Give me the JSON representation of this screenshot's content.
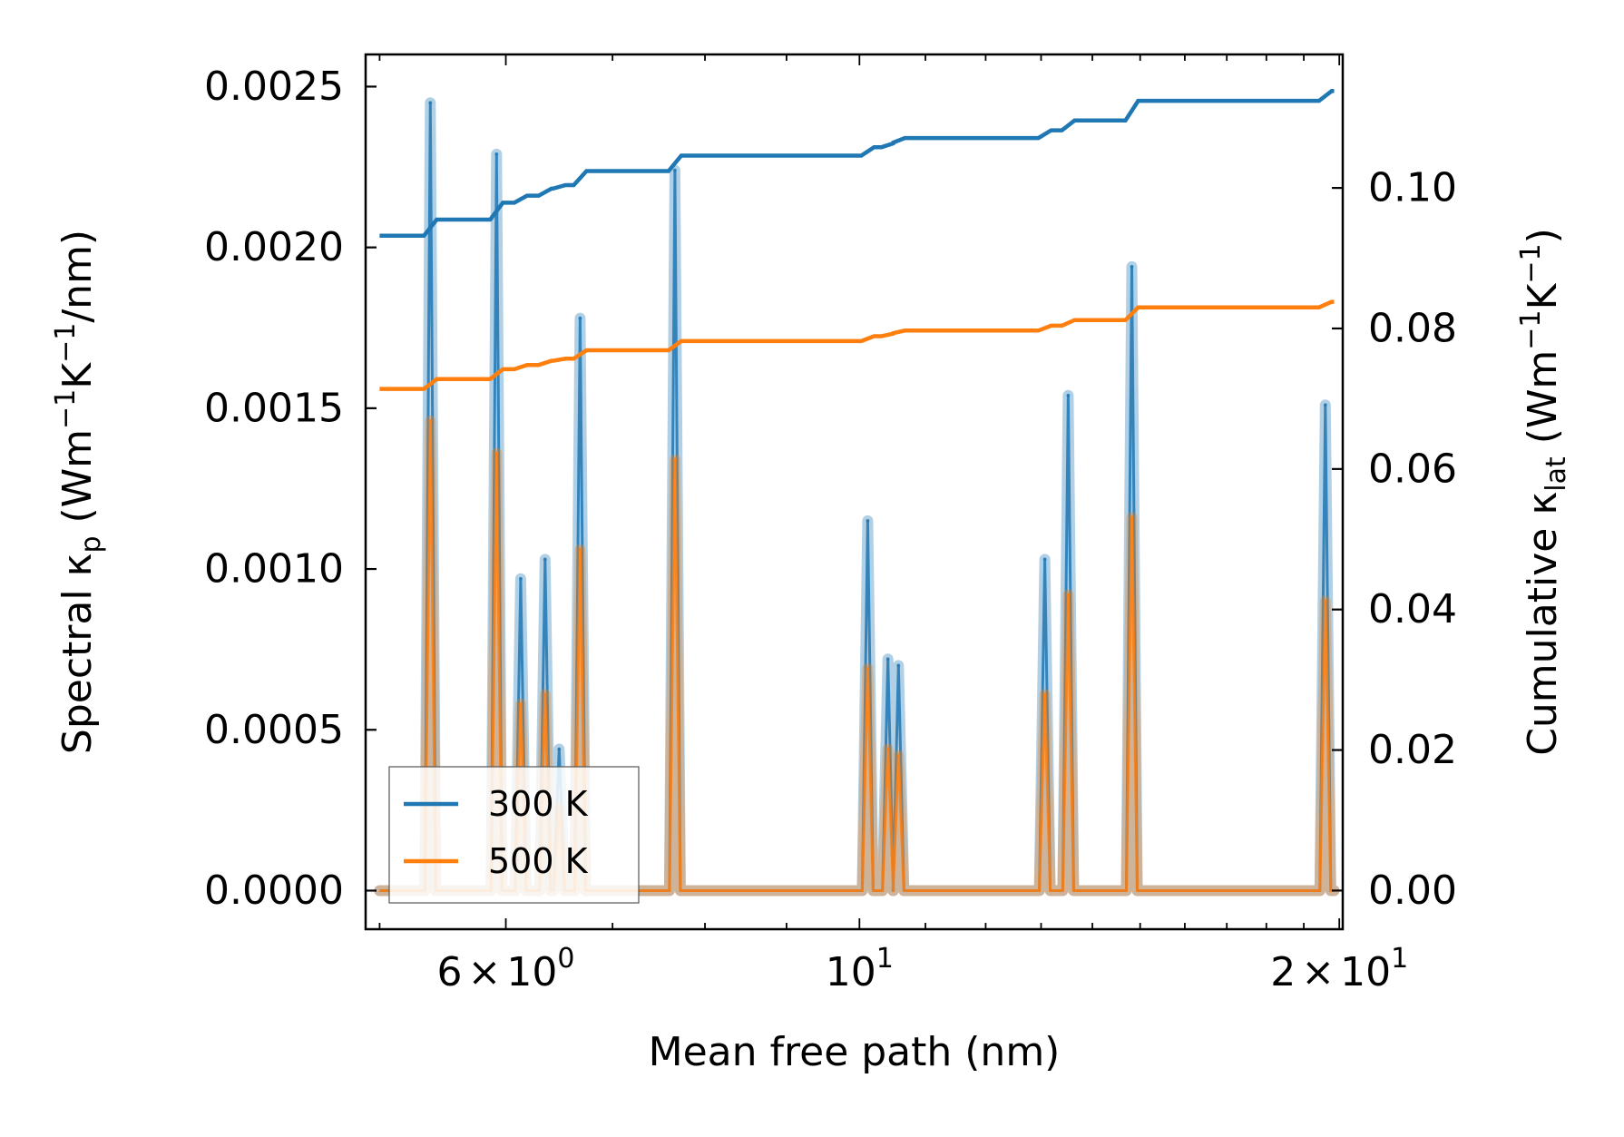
{
  "chart_data": {
    "type": "line",
    "title": "",
    "xlabel": "Mean free path (nm)",
    "xscale": "log",
    "xlim": [
      4.9,
      20.1
    ],
    "x_ticks": [
      {
        "value": 6,
        "base": "6",
        "times": "×",
        "exp_base": "10",
        "exp": "0"
      },
      {
        "value": 10,
        "base": "",
        "times": "",
        "exp_base": "10",
        "exp": "1"
      },
      {
        "value": 20,
        "base": "2",
        "times": "×",
        "exp_base": "10",
        "exp": "1"
      }
    ],
    "ylabel_left": {
      "prefix": "Spectral κ",
      "sub": "p",
      "middle1": " (Wm",
      "sup1": "−1",
      "middle2": "K",
      "sup2": "−1",
      "suffix": "/nm)"
    },
    "ylim_left": [
      -0.00012,
      0.0026
    ],
    "yticks_left": [
      "0.0000",
      "0.0005",
      "0.0010",
      "0.0015",
      "0.0020",
      "0.0025"
    ],
    "ylabel_right": {
      "prefix": "Cumulative κ",
      "sub": "lat",
      "middle1": " (Wm",
      "sup1": "−1",
      "middle2": "K",
      "sup2": "−1",
      "suffix": ")"
    },
    "ylim_right": [
      -0.0055,
      0.119
    ],
    "yticks_right": [
      "0.00",
      "0.02",
      "0.04",
      "0.06",
      "0.08",
      "0.10"
    ],
    "legend": {
      "position": "lower-left",
      "entries": [
        {
          "label": "300 K",
          "color": "#1f77b4"
        },
        {
          "label": "500 K",
          "color": "#ff7f0e"
        }
      ]
    },
    "x_start": 5.0,
    "x_end": 19.85,
    "spectral_series": [
      {
        "name": "300 K",
        "color": "#1f77b4",
        "peaks": [
          {
            "x": 5.38,
            "y": 0.00245
          },
          {
            "x": 5.92,
            "y": 0.00229
          },
          {
            "x": 6.13,
            "y": 0.00097
          },
          {
            "x": 6.35,
            "y": 0.00103
          },
          {
            "x": 6.48,
            "y": 0.00044
          },
          {
            "x": 6.68,
            "y": 0.00178
          },
          {
            "x": 7.66,
            "y": 0.00224
          },
          {
            "x": 10.12,
            "y": 0.00115
          },
          {
            "x": 10.42,
            "y": 0.00072
          },
          {
            "x": 10.58,
            "y": 0.0007
          },
          {
            "x": 13.07,
            "y": 0.00103
          },
          {
            "x": 13.52,
            "y": 0.00154
          },
          {
            "x": 14.82,
            "y": 0.00194
          },
          {
            "x": 19.6,
            "y": 0.00151
          }
        ]
      },
      {
        "name": "500 K",
        "color": "#ff7f0e",
        "peaks": [
          {
            "x": 5.38,
            "y": 0.00146
          },
          {
            "x": 5.92,
            "y": 0.00136
          },
          {
            "x": 6.13,
            "y": 0.00058
          },
          {
            "x": 6.35,
            "y": 0.00061
          },
          {
            "x": 6.48,
            "y": 0.00026
          },
          {
            "x": 6.68,
            "y": 0.00106
          },
          {
            "x": 7.66,
            "y": 0.00134
          },
          {
            "x": 10.12,
            "y": 0.00069
          },
          {
            "x": 10.42,
            "y": 0.00044
          },
          {
            "x": 10.58,
            "y": 0.00042
          },
          {
            "x": 13.07,
            "y": 0.00061
          },
          {
            "x": 13.52,
            "y": 0.00092
          },
          {
            "x": 14.82,
            "y": 0.00116
          },
          {
            "x": 19.6,
            "y": 0.0009
          }
        ]
      }
    ],
    "cumulative_series": [
      {
        "name": "300 K",
        "color": "#1f77b4",
        "start": 0.0932,
        "steps": [
          {
            "x": 5.38,
            "y": 0.0955
          },
          {
            "x": 5.92,
            "y": 0.0979
          },
          {
            "x": 6.13,
            "y": 0.0989
          },
          {
            "x": 6.35,
            "y": 0.0999
          },
          {
            "x": 6.48,
            "y": 0.1004
          },
          {
            "x": 6.68,
            "y": 0.1024
          },
          {
            "x": 7.66,
            "y": 0.1046
          },
          {
            "x": 10.12,
            "y": 0.1058
          },
          {
            "x": 10.42,
            "y": 0.1064
          },
          {
            "x": 10.58,
            "y": 0.1071
          },
          {
            "x": 13.07,
            "y": 0.1082
          },
          {
            "x": 13.52,
            "y": 0.1096
          },
          {
            "x": 14.82,
            "y": 0.1124
          },
          {
            "x": 19.6,
            "y": 0.1138
          }
        ]
      },
      {
        "name": "500 K",
        "color": "#ff7f0e",
        "start": 0.0714,
        "steps": [
          {
            "x": 5.38,
            "y": 0.0728
          },
          {
            "x": 5.92,
            "y": 0.0742
          },
          {
            "x": 6.13,
            "y": 0.0748
          },
          {
            "x": 6.35,
            "y": 0.0754
          },
          {
            "x": 6.48,
            "y": 0.0757
          },
          {
            "x": 6.68,
            "y": 0.0769
          },
          {
            "x": 7.66,
            "y": 0.0782
          },
          {
            "x": 10.12,
            "y": 0.0789
          },
          {
            "x": 10.42,
            "y": 0.0793
          },
          {
            "x": 10.58,
            "y": 0.0797
          },
          {
            "x": 13.07,
            "y": 0.0804
          },
          {
            "x": 13.52,
            "y": 0.0812
          },
          {
            "x": 14.82,
            "y": 0.083
          },
          {
            "x": 19.6,
            "y": 0.0838
          }
        ]
      }
    ]
  }
}
